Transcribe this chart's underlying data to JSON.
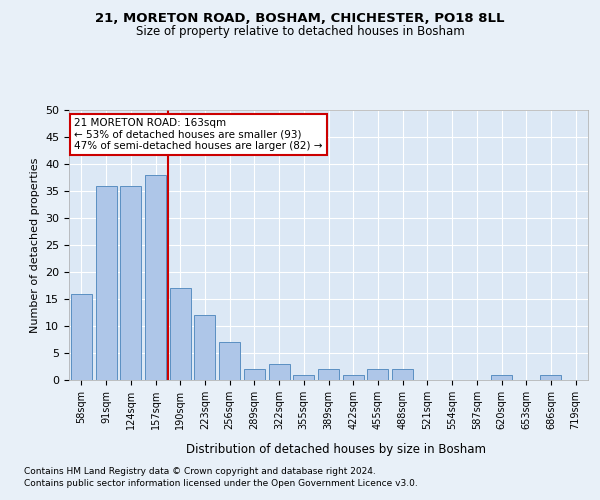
{
  "title1": "21, MORETON ROAD, BOSHAM, CHICHESTER, PO18 8LL",
  "title2": "Size of property relative to detached houses in Bosham",
  "xlabel": "Distribution of detached houses by size in Bosham",
  "ylabel": "Number of detached properties",
  "categories": [
    "58sqm",
    "91sqm",
    "124sqm",
    "157sqm",
    "190sqm",
    "223sqm",
    "256sqm",
    "289sqm",
    "322sqm",
    "355sqm",
    "389sqm",
    "422sqm",
    "455sqm",
    "488sqm",
    "521sqm",
    "554sqm",
    "587sqm",
    "620sqm",
    "653sqm",
    "686sqm",
    "719sqm"
  ],
  "values": [
    16,
    36,
    36,
    38,
    17,
    12,
    7,
    2,
    3,
    1,
    2,
    1,
    2,
    2,
    0,
    0,
    0,
    1,
    0,
    1,
    0
  ],
  "bar_color": "#aec6e8",
  "bar_edge_color": "#5a8fc2",
  "vline_x": 3.5,
  "vline_color": "#cc0000",
  "annotation_title": "21 MORETON ROAD: 163sqm",
  "annotation_line1": "← 53% of detached houses are smaller (93)",
  "annotation_line2": "47% of semi-detached houses are larger (82) →",
  "annotation_box_color": "#ffffff",
  "annotation_box_edgecolor": "#cc0000",
  "ylim": [
    0,
    50
  ],
  "yticks": [
    0,
    5,
    10,
    15,
    20,
    25,
    30,
    35,
    40,
    45,
    50
  ],
  "footer1": "Contains HM Land Registry data © Crown copyright and database right 2024.",
  "footer2": "Contains public sector information licensed under the Open Government Licence v3.0.",
  "bg_color": "#e8f0f8",
  "plot_bg_color": "#dce8f5"
}
